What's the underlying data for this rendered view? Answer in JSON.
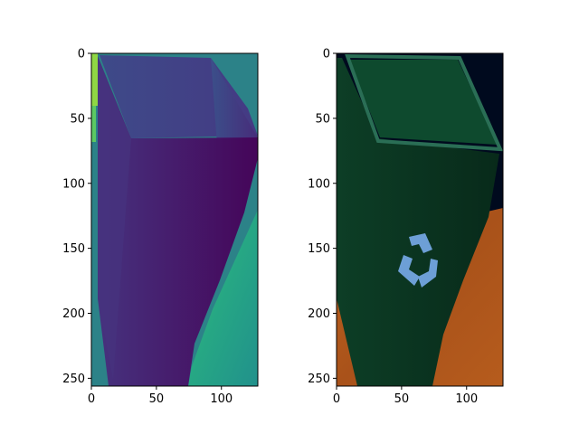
{
  "figure": {
    "background": "#ffffff"
  },
  "chart_data": [
    {
      "type": "heatmap",
      "title": "",
      "xlabel": "",
      "ylabel": "",
      "image_size": [
        128,
        256
      ],
      "xlim": [
        0,
        128
      ],
      "ylim": [
        256,
        0
      ],
      "xticks": [
        0,
        50,
        100
      ],
      "yticks": [
        0,
        50,
        100,
        150,
        200,
        250
      ],
      "grid": false,
      "colormap": "viridis",
      "description_colors": {
        "background_right_top": "#2c8288",
        "left_edge_strip": "#8fd744",
        "bin_interior_dark": "#440154",
        "bin_rim": "#3b528b",
        "bin_body": "#472d7b",
        "floor_gradient_light": "#35b779",
        "floor_gradient_mid": "#21918c"
      }
    },
    {
      "type": "heatmap",
      "title": "",
      "xlabel": "",
      "ylabel": "",
      "image_size": [
        128,
        256
      ],
      "xlim": [
        0,
        128
      ],
      "ylim": [
        256,
        0
      ],
      "xticks": [
        0,
        50,
        100
      ],
      "yticks": [
        0,
        50,
        100,
        150,
        200,
        250
      ],
      "grid": false,
      "colormap": "rgb",
      "description_colors": {
        "background_top": "#000a1e",
        "wood_floor": "#b4561a",
        "bin_body": "#0a3320",
        "bin_rim": "#2a6e55",
        "bin_interior": "#0e4a2e",
        "recycle_symbol": "#6d9fd6"
      }
    }
  ]
}
